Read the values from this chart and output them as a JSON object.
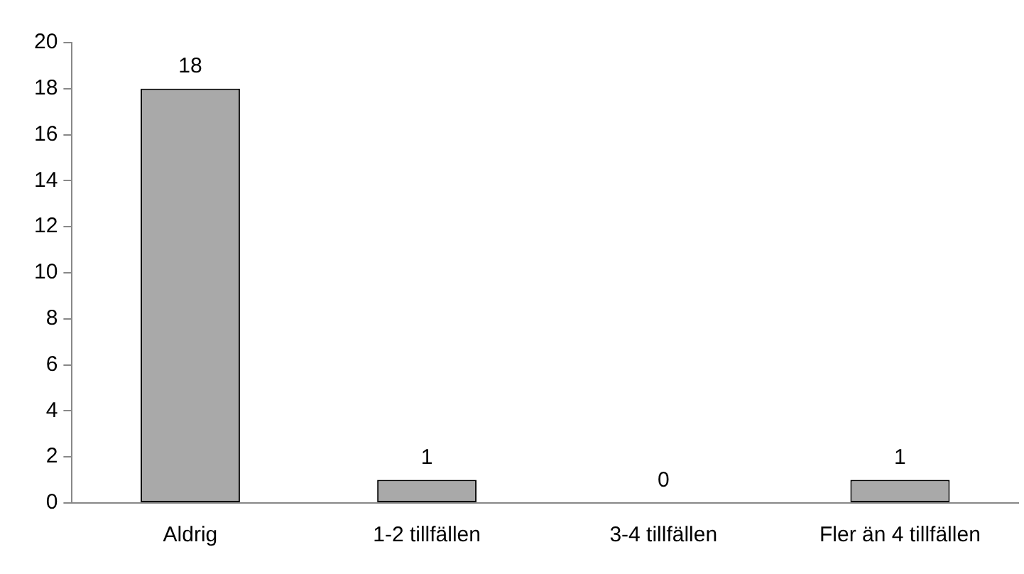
{
  "chart_data": {
    "type": "bar",
    "categories": [
      "Aldrig",
      "1-2 tillfällen",
      "3-4 tillfällen",
      "Fler än 4 tillfällen"
    ],
    "values": [
      18,
      1,
      0,
      1
    ],
    "color": "#a9a9a9",
    "ylim": [
      0,
      20
    ],
    "yticks": [
      0,
      2,
      4,
      6,
      8,
      10,
      12,
      14,
      16,
      18,
      20
    ],
    "grid": false,
    "legend": false,
    "data_labels": true
  }
}
